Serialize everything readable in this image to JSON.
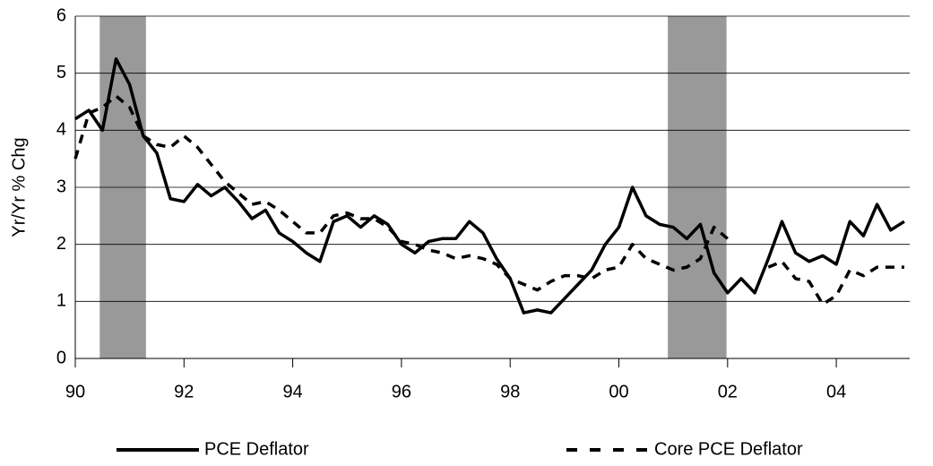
{
  "chart_data": {
    "type": "line",
    "y_label": "Yr/Yr % Chg",
    "x": [
      1990,
      1990.25,
      1990.5,
      1990.75,
      1991,
      1991.25,
      1991.5,
      1991.75,
      1992,
      1992.25,
      1992.5,
      1992.75,
      1993,
      1993.25,
      1993.5,
      1993.75,
      1994,
      1994.25,
      1994.5,
      1994.75,
      1995,
      1995.25,
      1995.5,
      1995.75,
      1996,
      1996.25,
      1996.5,
      1996.75,
      1997,
      1997.25,
      1997.5,
      1997.75,
      1998,
      1998.25,
      1998.5,
      1998.75,
      1999,
      1999.25,
      1999.5,
      1999.75,
      2000,
      2000.25,
      2000.5,
      2000.75,
      2001,
      2001.25,
      2001.5,
      2001.75,
      2002,
      2002.25,
      2002.5,
      2002.75,
      2003,
      2003.25,
      2003.5,
      2003.75,
      2004,
      2004.25,
      2004.5,
      2004.75,
      2005,
      2005.25
    ],
    "series": [
      {
        "name": "PCE Deflator",
        "color": "#000000",
        "dash": false,
        "values": [
          4.2,
          4.35,
          4.0,
          5.25,
          4.8,
          3.9,
          3.6,
          2.8,
          2.75,
          3.05,
          2.85,
          3.0,
          2.75,
          2.45,
          2.6,
          2.2,
          2.05,
          1.85,
          1.7,
          2.4,
          2.5,
          2.3,
          2.5,
          2.35,
          2.0,
          1.85,
          2.05,
          2.1,
          2.1,
          2.4,
          2.2,
          1.75,
          1.4,
          0.8,
          0.85,
          0.8,
          1.05,
          1.3,
          1.55,
          2.0,
          2.3,
          3.0,
          2.5,
          2.35,
          2.3,
          2.1,
          2.35,
          1.5,
          1.15,
          1.4,
          1.15,
          1.75,
          2.4,
          1.85,
          1.7,
          1.8,
          1.65,
          2.4,
          2.15,
          2.7,
          2.25,
          2.4
        ]
      },
      {
        "name": "Core PCE Deflator",
        "color": "#000000",
        "dash": true,
        "values": [
          3.5,
          4.3,
          4.4,
          4.6,
          4.4,
          3.9,
          3.75,
          3.7,
          3.9,
          3.7,
          3.4,
          3.1,
          2.9,
          2.7,
          2.75,
          2.6,
          2.4,
          2.2,
          2.2,
          2.5,
          2.55,
          2.45,
          2.45,
          2.3,
          2.05,
          2.0,
          1.9,
          1.85,
          1.75,
          1.8,
          1.75,
          1.65,
          1.4,
          1.3,
          1.2,
          1.35,
          1.45,
          1.45,
          1.4,
          1.55,
          1.6,
          2.0,
          1.75,
          1.65,
          1.55,
          1.6,
          1.75,
          2.3,
          2.1,
          null,
          null,
          1.6,
          1.7,
          1.4,
          1.35,
          0.95,
          1.1,
          1.55,
          1.45,
          1.6,
          1.6,
          1.6
        ]
      }
    ],
    "recessions": [
      [
        1990.45,
        1991.3
      ],
      [
        2000.9,
        2001.98
      ]
    ],
    "recession_color": "#999999",
    "xlim": [
      1990,
      2005.35
    ],
    "xticks": [
      {
        "value": 1990,
        "label": "90"
      },
      {
        "value": 1992,
        "label": "92"
      },
      {
        "value": 1994,
        "label": "94"
      },
      {
        "value": 1996,
        "label": "96"
      },
      {
        "value": 1998,
        "label": "98"
      },
      {
        "value": 2000,
        "label": "00"
      },
      {
        "value": 2002,
        "label": "02"
      },
      {
        "value": 2004,
        "label": "04"
      }
    ],
    "ylim": [
      0,
      6
    ],
    "yticks": [
      0,
      1,
      2,
      3,
      4,
      5,
      6
    ],
    "grid": true,
    "legend": "bottom"
  }
}
